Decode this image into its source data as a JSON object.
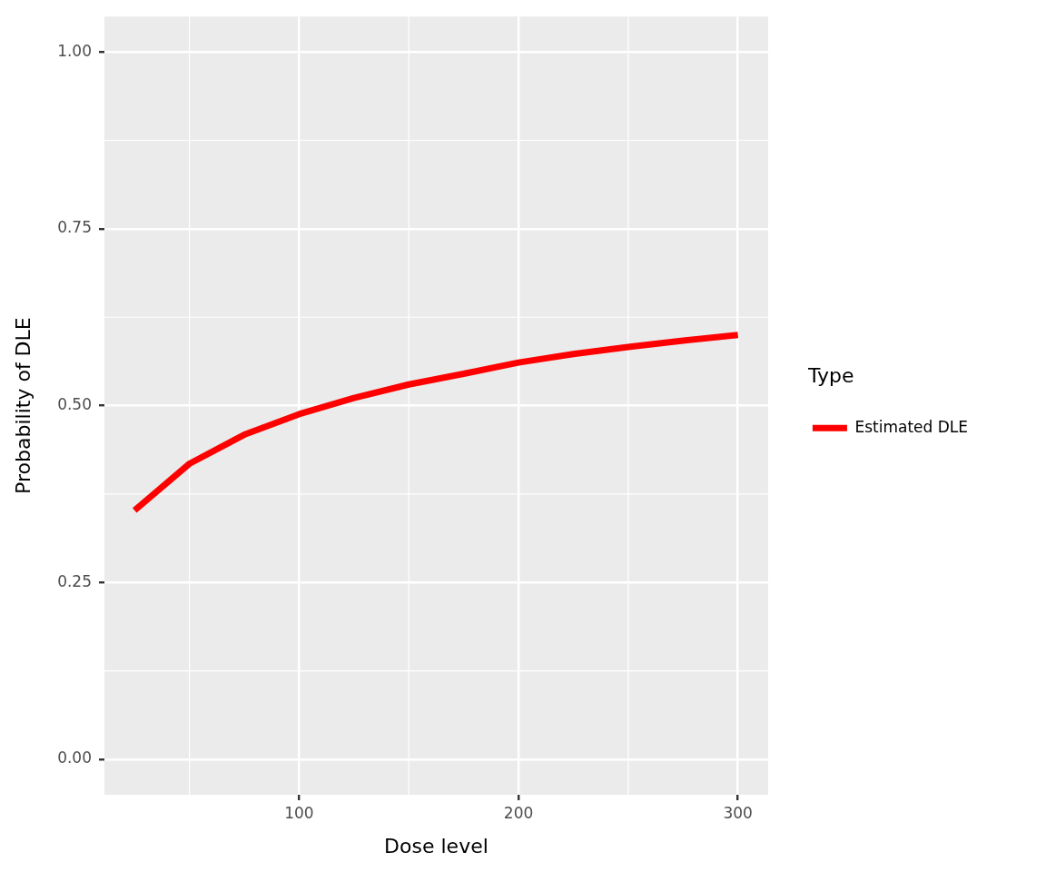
{
  "chart_data": {
    "type": "line",
    "xlabel": "Dose level",
    "ylabel": "Probability of DLE",
    "legend_title": "Type",
    "x": [
      25,
      50,
      75,
      100,
      125,
      150,
      175,
      200,
      225,
      250,
      275,
      300
    ],
    "series": [
      {
        "name": "Estimated DLE",
        "color": "#ff0000",
        "values": [
          0.352,
          0.418,
          0.459,
          0.488,
          0.511,
          0.53,
          0.545,
          0.561,
          0.573,
          0.583,
          0.592,
          0.6
        ]
      }
    ],
    "xlim": [
      11.25,
      313.75
    ],
    "xticks": [
      100,
      200,
      300
    ],
    "ylim": [
      -0.05,
      1.05
    ],
    "yticks": [
      {
        "value": 0,
        "label": "0.00"
      },
      0.25,
      {
        "value": 0.5,
        "label": "0.50"
      },
      0.75,
      {
        "value": 1,
        "label": "1.00"
      }
    ],
    "grid": true,
    "legend": "right",
    "line_style": "solid"
  }
}
